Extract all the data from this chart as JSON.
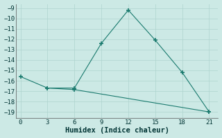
{
  "line1_x": [
    0,
    3,
    6,
    9,
    12,
    15,
    18,
    21
  ],
  "line1_y": [
    -15.6,
    -16.7,
    -16.7,
    -12.4,
    -9.2,
    -12.1,
    -15.2,
    -19.0
  ],
  "line2_x": [
    3,
    6,
    21
  ],
  "line2_y": [
    -16.7,
    -16.85,
    -19.0
  ],
  "color": "#1a7a6e",
  "bg_color": "#cce9e5",
  "grid_color": "#afd4cf",
  "xlabel": "Humidex (Indice chaleur)",
  "xlim": [
    -0.5,
    22
  ],
  "ylim": [
    -19.6,
    -8.6
  ],
  "xticks": [
    0,
    3,
    6,
    9,
    12,
    15,
    18,
    21
  ],
  "yticks": [
    -9,
    -10,
    -11,
    -12,
    -13,
    -14,
    -15,
    -16,
    -17,
    -18,
    -19
  ],
  "xlabel_fontsize": 7.5,
  "tick_fontsize": 6.5
}
